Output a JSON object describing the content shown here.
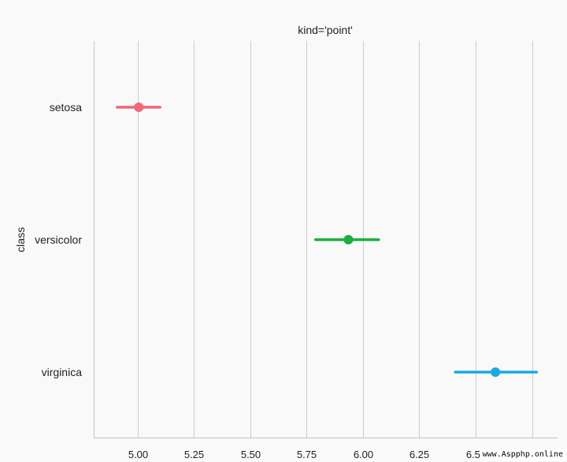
{
  "chart_data": {
    "type": "point",
    "title": "kind='point'",
    "xlabel": "",
    "ylabel": "class",
    "categories": [
      "setosa",
      "versicolor",
      "virginica"
    ],
    "values": [
      5.006,
      5.936,
      6.588
    ],
    "ci": [
      [
        4.91,
        5.1
      ],
      [
        5.79,
        6.07
      ],
      [
        6.41,
        6.77
      ]
    ],
    "xlim": [
      4.85,
      6.85
    ],
    "xticks": [
      5.0,
      5.25,
      5.5,
      5.75,
      6.0,
      6.25,
      6.5,
      6.75
    ],
    "xtick_labels": [
      "5.00",
      "5.25",
      "5.50",
      "5.75",
      "6.00",
      "6.25",
      "6.50",
      "6.75"
    ],
    "grid": "x",
    "colors": [
      "#f0677a",
      "#1aaf3c",
      "#1ba8e0"
    ]
  },
  "watermark": "www.Aspphp.online"
}
